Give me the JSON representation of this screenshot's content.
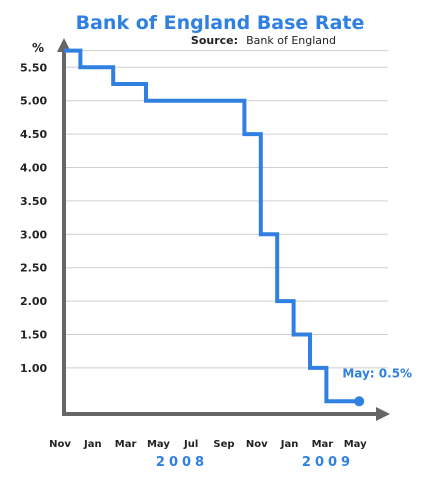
{
  "chart_data": {
    "type": "line",
    "step": true,
    "title": "Bank of England Base Rate",
    "source_label": "Source:",
    "source_value": "Bank of England",
    "ylabel": "%",
    "xlabel": "",
    "ylim": [
      0.5,
      5.85
    ],
    "yticks": [
      "5.50",
      "5.00",
      "4.50",
      "4.00",
      "3.50",
      "3.00",
      "2.50",
      "2.00",
      "1.50",
      "1.00"
    ],
    "ytick_values": [
      5.5,
      5.0,
      4.5,
      4.0,
      3.5,
      3.0,
      2.5,
      2.0,
      1.5,
      1.0
    ],
    "xticks": [
      "Nov",
      "Jan",
      "Mar",
      "May",
      "Jul",
      "Sep",
      "Nov",
      "Jan",
      "Mar",
      "May"
    ],
    "year_labels": [
      "2008",
      "2009"
    ],
    "grid": true,
    "line_color": "#2f80e0",
    "series": [
      {
        "points": [
          {
            "month": 0,
            "rate": 5.75
          },
          {
            "month": 1,
            "rate": 5.5
          },
          {
            "month": 3,
            "rate": 5.25
          },
          {
            "month": 5,
            "rate": 5.0
          },
          {
            "month": 11,
            "rate": 4.5
          },
          {
            "month": 12,
            "rate": 3.0
          },
          {
            "month": 13,
            "rate": 2.0
          },
          {
            "month": 14,
            "rate": 1.5
          },
          {
            "month": 15,
            "rate": 1.0
          },
          {
            "month": 16,
            "rate": 0.5
          },
          {
            "month": 18,
            "rate": 0.5
          }
        ]
      }
    ],
    "annotation": {
      "text": "May: 0.5%",
      "month": 18,
      "rate": 0.5
    }
  }
}
